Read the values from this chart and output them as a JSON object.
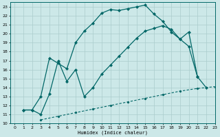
{
  "xlabel": "Humidex (Indice chaleur)",
  "bg_color": "#cce8e8",
  "grid_color": "#aacccc",
  "line_color": "#006666",
  "xlim": [
    -0.5,
    23
  ],
  "ylim": [
    10,
    23.5
  ],
  "xticks": [
    0,
    1,
    2,
    3,
    4,
    5,
    6,
    7,
    8,
    9,
    10,
    11,
    12,
    13,
    14,
    15,
    16,
    17,
    18,
    19,
    20,
    21,
    22,
    23
  ],
  "yticks": [
    10,
    11,
    12,
    13,
    14,
    15,
    16,
    17,
    18,
    19,
    20,
    21,
    22,
    23
  ],
  "line1_x": [
    1,
    2,
    3,
    4,
    5,
    6,
    7,
    8,
    9,
    10,
    11,
    12,
    13,
    14,
    15,
    16,
    17,
    18,
    19,
    20,
    21,
    22
  ],
  "line1_y": [
    11.5,
    11.5,
    13.0,
    17.3,
    16.7,
    16.1,
    19.0,
    20.3,
    21.2,
    22.3,
    22.7,
    22.6,
    22.8,
    23.0,
    23.2,
    22.2,
    21.4,
    20.2,
    19.4,
    18.6,
    15.2,
    14.0
  ],
  "line2_x": [
    1,
    2,
    3,
    4,
    5,
    6,
    7,
    8,
    9,
    10,
    11,
    12,
    13,
    14,
    15,
    16,
    17,
    18,
    19,
    20,
    21
  ],
  "line2_y": [
    11.5,
    11.5,
    11.0,
    13.3,
    17.0,
    14.7,
    16.0,
    13.0,
    14.0,
    15.5,
    16.5,
    17.5,
    18.5,
    19.5,
    20.3,
    20.6,
    20.9,
    20.5,
    19.4,
    20.2,
    15.2
  ],
  "line3_x": [
    3,
    5,
    7,
    9,
    11,
    13,
    15,
    17,
    19,
    21,
    23
  ],
  "line3_y": [
    10.4,
    10.8,
    11.2,
    11.6,
    12.0,
    12.4,
    12.8,
    13.2,
    13.6,
    13.9,
    14.1
  ]
}
